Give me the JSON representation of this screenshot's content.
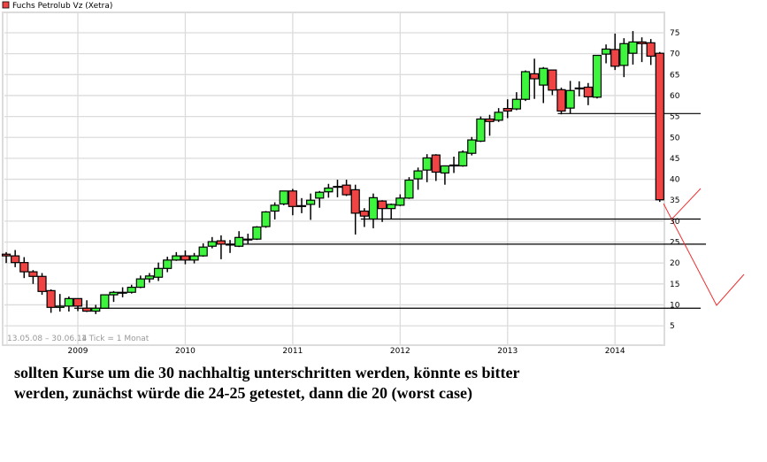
{
  "chart_data": {
    "type": "candlestick",
    "title": "",
    "legend": [
      {
        "label": "Fuchs Petrolub Vz (Xetra)",
        "color": "#f04444"
      }
    ],
    "legend_placement": "top-left",
    "range_label": "13.05.08 – 30.06.14",
    "tick_label": "1 Tick = 1 Monat",
    "x_ticks": [
      "2009",
      "2010",
      "2011",
      "2012",
      "2013",
      "2014"
    ],
    "y_ticks": [
      5,
      10,
      15,
      20,
      25,
      30,
      35,
      40,
      45,
      50,
      55,
      60,
      65,
      70,
      75
    ],
    "y_axis_side": "right",
    "ylim": [
      5,
      75
    ],
    "grid": true,
    "colors": {
      "up": "#3df53d",
      "down": "#f04444",
      "grid": "#dcdcdc",
      "annotation": "#f03030"
    },
    "candle_fields": [
      "month",
      "open",
      "high",
      "low",
      "close"
    ],
    "candles": [
      [
        "2008-05",
        22.1,
        22.6,
        20.0,
        21.7
      ],
      [
        "2008-06",
        21.7,
        23.1,
        19.0,
        20.1
      ],
      [
        "2008-07",
        20.1,
        21.4,
        16.4,
        17.9
      ],
      [
        "2008-08",
        17.9,
        18.3,
        15.0,
        16.8
      ],
      [
        "2008-09",
        16.8,
        17.6,
        12.4,
        13.2
      ],
      [
        "2008-10",
        13.4,
        13.7,
        8.1,
        9.4
      ],
      [
        "2008-11",
        9.4,
        12.6,
        8.4,
        9.7
      ],
      [
        "2008-12",
        9.7,
        12.0,
        8.4,
        11.5
      ],
      [
        "2009-01",
        11.5,
        11.5,
        8.5,
        9.7
      ],
      [
        "2009-02",
        9.2,
        11.1,
        8.3,
        8.5
      ],
      [
        "2009-03",
        8.5,
        10.0,
        7.8,
        9.2
      ],
      [
        "2009-04",
        9.2,
        12.4,
        9.2,
        12.4
      ],
      [
        "2009-05",
        12.4,
        13.3,
        10.7,
        13.0
      ],
      [
        "2009-06",
        12.8,
        14.2,
        11.8,
        13.0
      ],
      [
        "2009-07",
        13.0,
        14.8,
        12.7,
        14.2
      ],
      [
        "2009-08",
        14.2,
        17.0,
        14.0,
        16.2
      ],
      [
        "2009-09",
        16.2,
        17.6,
        15.3,
        16.9
      ],
      [
        "2009-10",
        16.6,
        20.1,
        15.7,
        18.7
      ],
      [
        "2009-11",
        18.7,
        21.5,
        17.8,
        20.7
      ],
      [
        "2009-12",
        20.7,
        22.6,
        20.5,
        21.7
      ],
      [
        "2010-01",
        21.7,
        23.0,
        19.7,
        20.7
      ],
      [
        "2010-02",
        20.7,
        22.4,
        19.9,
        21.7
      ],
      [
        "2010-03",
        21.7,
        24.7,
        21.5,
        23.8
      ],
      [
        "2010-04",
        24.0,
        26.2,
        23.5,
        25.1
      ],
      [
        "2010-05",
        25.3,
        26.6,
        20.9,
        24.5
      ],
      [
        "2010-06",
        24.3,
        25.5,
        22.4,
        24.5
      ],
      [
        "2010-07",
        24.0,
        27.6,
        23.8,
        26.1
      ],
      [
        "2010-08",
        25.7,
        27.0,
        24.6,
        25.7
      ],
      [
        "2010-09",
        25.7,
        28.8,
        25.5,
        28.6
      ],
      [
        "2010-10",
        28.7,
        32.4,
        28.4,
        32.2
      ],
      [
        "2010-11",
        32.4,
        34.5,
        30.4,
        33.8
      ],
      [
        "2010-12",
        34.1,
        37.2,
        33.8,
        37.2
      ],
      [
        "2011-01",
        37.2,
        37.7,
        31.4,
        33.5
      ],
      [
        "2011-02",
        33.7,
        35.5,
        31.9,
        33.7
      ],
      [
        "2011-03",
        34.0,
        36.6,
        30.3,
        35.0
      ],
      [
        "2011-04",
        35.5,
        37.2,
        33.2,
        36.9
      ],
      [
        "2011-05",
        37.0,
        38.9,
        35.6,
        37.9
      ],
      [
        "2011-06",
        38.3,
        39.9,
        35.7,
        38.3
      ],
      [
        "2011-07",
        38.6,
        39.9,
        36.0,
        36.3
      ],
      [
        "2011-08",
        37.5,
        38.7,
        26.8,
        31.9
      ],
      [
        "2011-09",
        32.4,
        33.1,
        28.6,
        31.2
      ],
      [
        "2011-10",
        30.5,
        36.6,
        28.3,
        35.6
      ],
      [
        "2011-11",
        34.8,
        35.0,
        29.8,
        33.0
      ],
      [
        "2011-12",
        33.0,
        34.2,
        30.6,
        34.0
      ],
      [
        "2012-01",
        33.8,
        36.4,
        33.6,
        35.5
      ],
      [
        "2012-02",
        35.5,
        40.5,
        35.3,
        39.8
      ],
      [
        "2012-03",
        40.1,
        42.8,
        37.5,
        42.0
      ],
      [
        "2012-04",
        42.2,
        46.0,
        39.3,
        45.1
      ],
      [
        "2012-05",
        45.8,
        46.0,
        39.6,
        41.7
      ],
      [
        "2012-06",
        41.5,
        43.3,
        38.7,
        43.2
      ],
      [
        "2012-07",
        43.4,
        45.4,
        41.5,
        43.4
      ],
      [
        "2012-08",
        43.2,
        46.9,
        43.0,
        46.5
      ],
      [
        "2012-09",
        46.2,
        50.1,
        45.7,
        49.4
      ],
      [
        "2012-10",
        49.1,
        55.0,
        48.9,
        54.4
      ],
      [
        "2012-11",
        54.4,
        55.4,
        50.4,
        53.8
      ],
      [
        "2012-12",
        54.1,
        57.0,
        53.7,
        56.0
      ],
      [
        "2013-01",
        56.9,
        59.1,
        54.6,
        56.3
      ],
      [
        "2013-02",
        56.8,
        60.8,
        56.5,
        59.1
      ],
      [
        "2013-03",
        59.1,
        66.0,
        58.7,
        65.7
      ],
      [
        "2013-04",
        65.2,
        68.8,
        59.2,
        64.0
      ],
      [
        "2013-05",
        62.5,
        66.8,
        58.2,
        66.5
      ],
      [
        "2013-06",
        66.1,
        66.2,
        60.1,
        61.3
      ],
      [
        "2013-07",
        61.4,
        61.9,
        55.5,
        56.3
      ],
      [
        "2013-08",
        57.0,
        63.5,
        55.7,
        61.2
      ],
      [
        "2013-09",
        61.8,
        63.4,
        59.8,
        61.8
      ],
      [
        "2013-10",
        62.0,
        63.0,
        57.7,
        59.7
      ],
      [
        "2013-11",
        59.6,
        69.6,
        59.3,
        69.6
      ],
      [
        "2013-12",
        69.9,
        72.2,
        67.7,
        71.1
      ],
      [
        "2014-01",
        71.0,
        74.8,
        66.1,
        67.0
      ],
      [
        "2014-02",
        67.2,
        73.7,
        64.4,
        72.4
      ],
      [
        "2014-03",
        70.1,
        75.4,
        67.4,
        72.8
      ],
      [
        "2014-04",
        72.8,
        73.9,
        68.0,
        72.4
      ],
      [
        "2014-05",
        72.6,
        73.5,
        67.3,
        69.4
      ],
      [
        "2014-06",
        70.1,
        70.4,
        34.6,
        35.1
      ]
    ],
    "support_lines": [
      {
        "level": 55.7,
        "from": "2013-07"
      },
      {
        "level": 30.5,
        "from": "2011-09"
      },
      {
        "level": 24.5,
        "from": "2010-06"
      },
      {
        "level": 9.2,
        "from": "2009-01"
      }
    ]
  },
  "caption": {
    "line1": "sollten Kurse um die 30 nachhaltig unterschritten werden, könnte es bitter",
    "line2": "werden, zunächst würde die 24-25 getestet, dann die 20 (worst case)"
  }
}
